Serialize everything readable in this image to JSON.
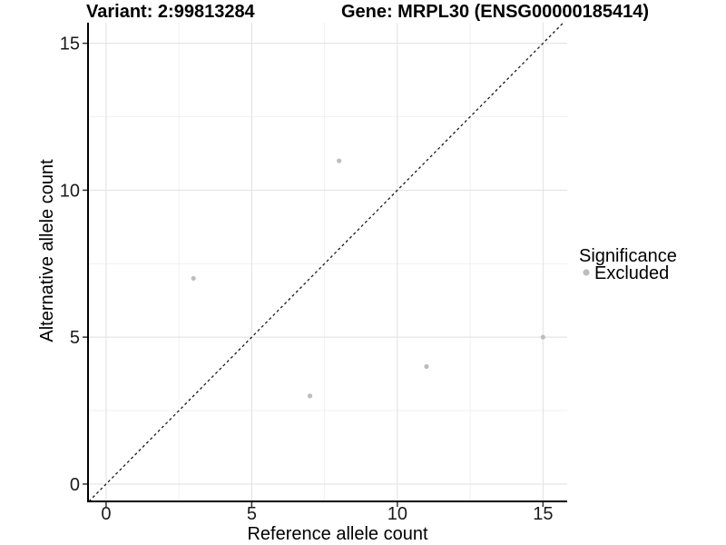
{
  "chart_data": {
    "type": "scatter",
    "title_left": "Variant: 2:99813284",
    "title_right": "Gene: MRPL30 (ENSG00000185414)",
    "xlabel": "Reference allele count",
    "ylabel": "Alternative allele count",
    "xlim": [
      -0.62,
      15.83
    ],
    "ylim": [
      -0.59,
      15.7
    ],
    "xticks": [
      0,
      5,
      10,
      15
    ],
    "yticks": [
      0,
      5,
      10,
      15
    ],
    "xticks_minor": [
      2.5,
      7.5,
      12.5
    ],
    "yticks_minor": [
      2.5,
      7.5,
      12.5
    ],
    "grid": "major and minor gridlines, white background",
    "identity_line": {
      "slope": 1,
      "intercept": 0,
      "style": "dashed",
      "color": "#1a1a1a"
    },
    "series": [
      {
        "name": "Excluded",
        "color": "#bdbdbd",
        "points": [
          [
            3,
            7
          ],
          [
            7,
            3
          ],
          [
            8,
            11
          ],
          [
            11,
            4
          ],
          [
            15,
            5
          ]
        ]
      }
    ],
    "legend": {
      "title": "Significance",
      "position": "right",
      "items": [
        {
          "label": "Excluded",
          "color": "#bdbdbd"
        }
      ]
    },
    "colors": {
      "background": "#ffffff",
      "grid_major": "#e3e3e3",
      "grid_minor": "#efefef",
      "axis_line": "#000000",
      "tick_mark": "#333333",
      "tick_text": "#1a1a1a",
      "title_text": "#000000",
      "point": "#bdbdbd"
    }
  }
}
